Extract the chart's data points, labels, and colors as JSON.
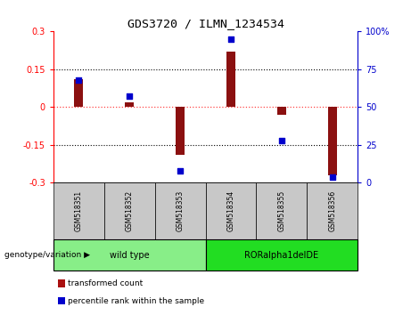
{
  "title": "GDS3720 / ILMN_1234534",
  "samples": [
    "GSM518351",
    "GSM518352",
    "GSM518353",
    "GSM518354",
    "GSM518355",
    "GSM518356"
  ],
  "transformed_counts": [
    0.11,
    0.02,
    -0.19,
    0.22,
    -0.03,
    -0.27
  ],
  "percentile_ranks": [
    68,
    57,
    8,
    95,
    28,
    4
  ],
  "ylim_left": [
    -0.3,
    0.3
  ],
  "ylim_right": [
    0,
    100
  ],
  "yticks_left": [
    -0.3,
    -0.15,
    0,
    0.15,
    0.3
  ],
  "yticks_right": [
    0,
    25,
    50,
    75,
    100
  ],
  "ytick_labels_left": [
    "-0.3",
    "-0.15",
    "0",
    "0.15",
    "0.3"
  ],
  "ytick_labels_right": [
    "0",
    "25",
    "50",
    "75",
    "100%"
  ],
  "bar_color": "#8B1010",
  "scatter_color": "#0000CC",
  "zero_line_color": "#FF4444",
  "dotted_line_color": "#000000",
  "bar_width": 0.18,
  "groups": [
    {
      "label": "wild type",
      "samples": [
        0,
        1,
        2
      ],
      "color": "#88EE88"
    },
    {
      "label": "RORalpha1delDE",
      "samples": [
        3,
        4,
        5
      ],
      "color": "#22DD22"
    }
  ],
  "genotype_label": "genotype/variation ▶",
  "legend_items": [
    {
      "label": "transformed count",
      "color": "#AA1111"
    },
    {
      "label": "percentile rank within the sample",
      "color": "#0000CC"
    }
  ],
  "background_color": "#FFFFFF",
  "tick_box_color": "#C8C8C8",
  "spine_color": "#000000"
}
